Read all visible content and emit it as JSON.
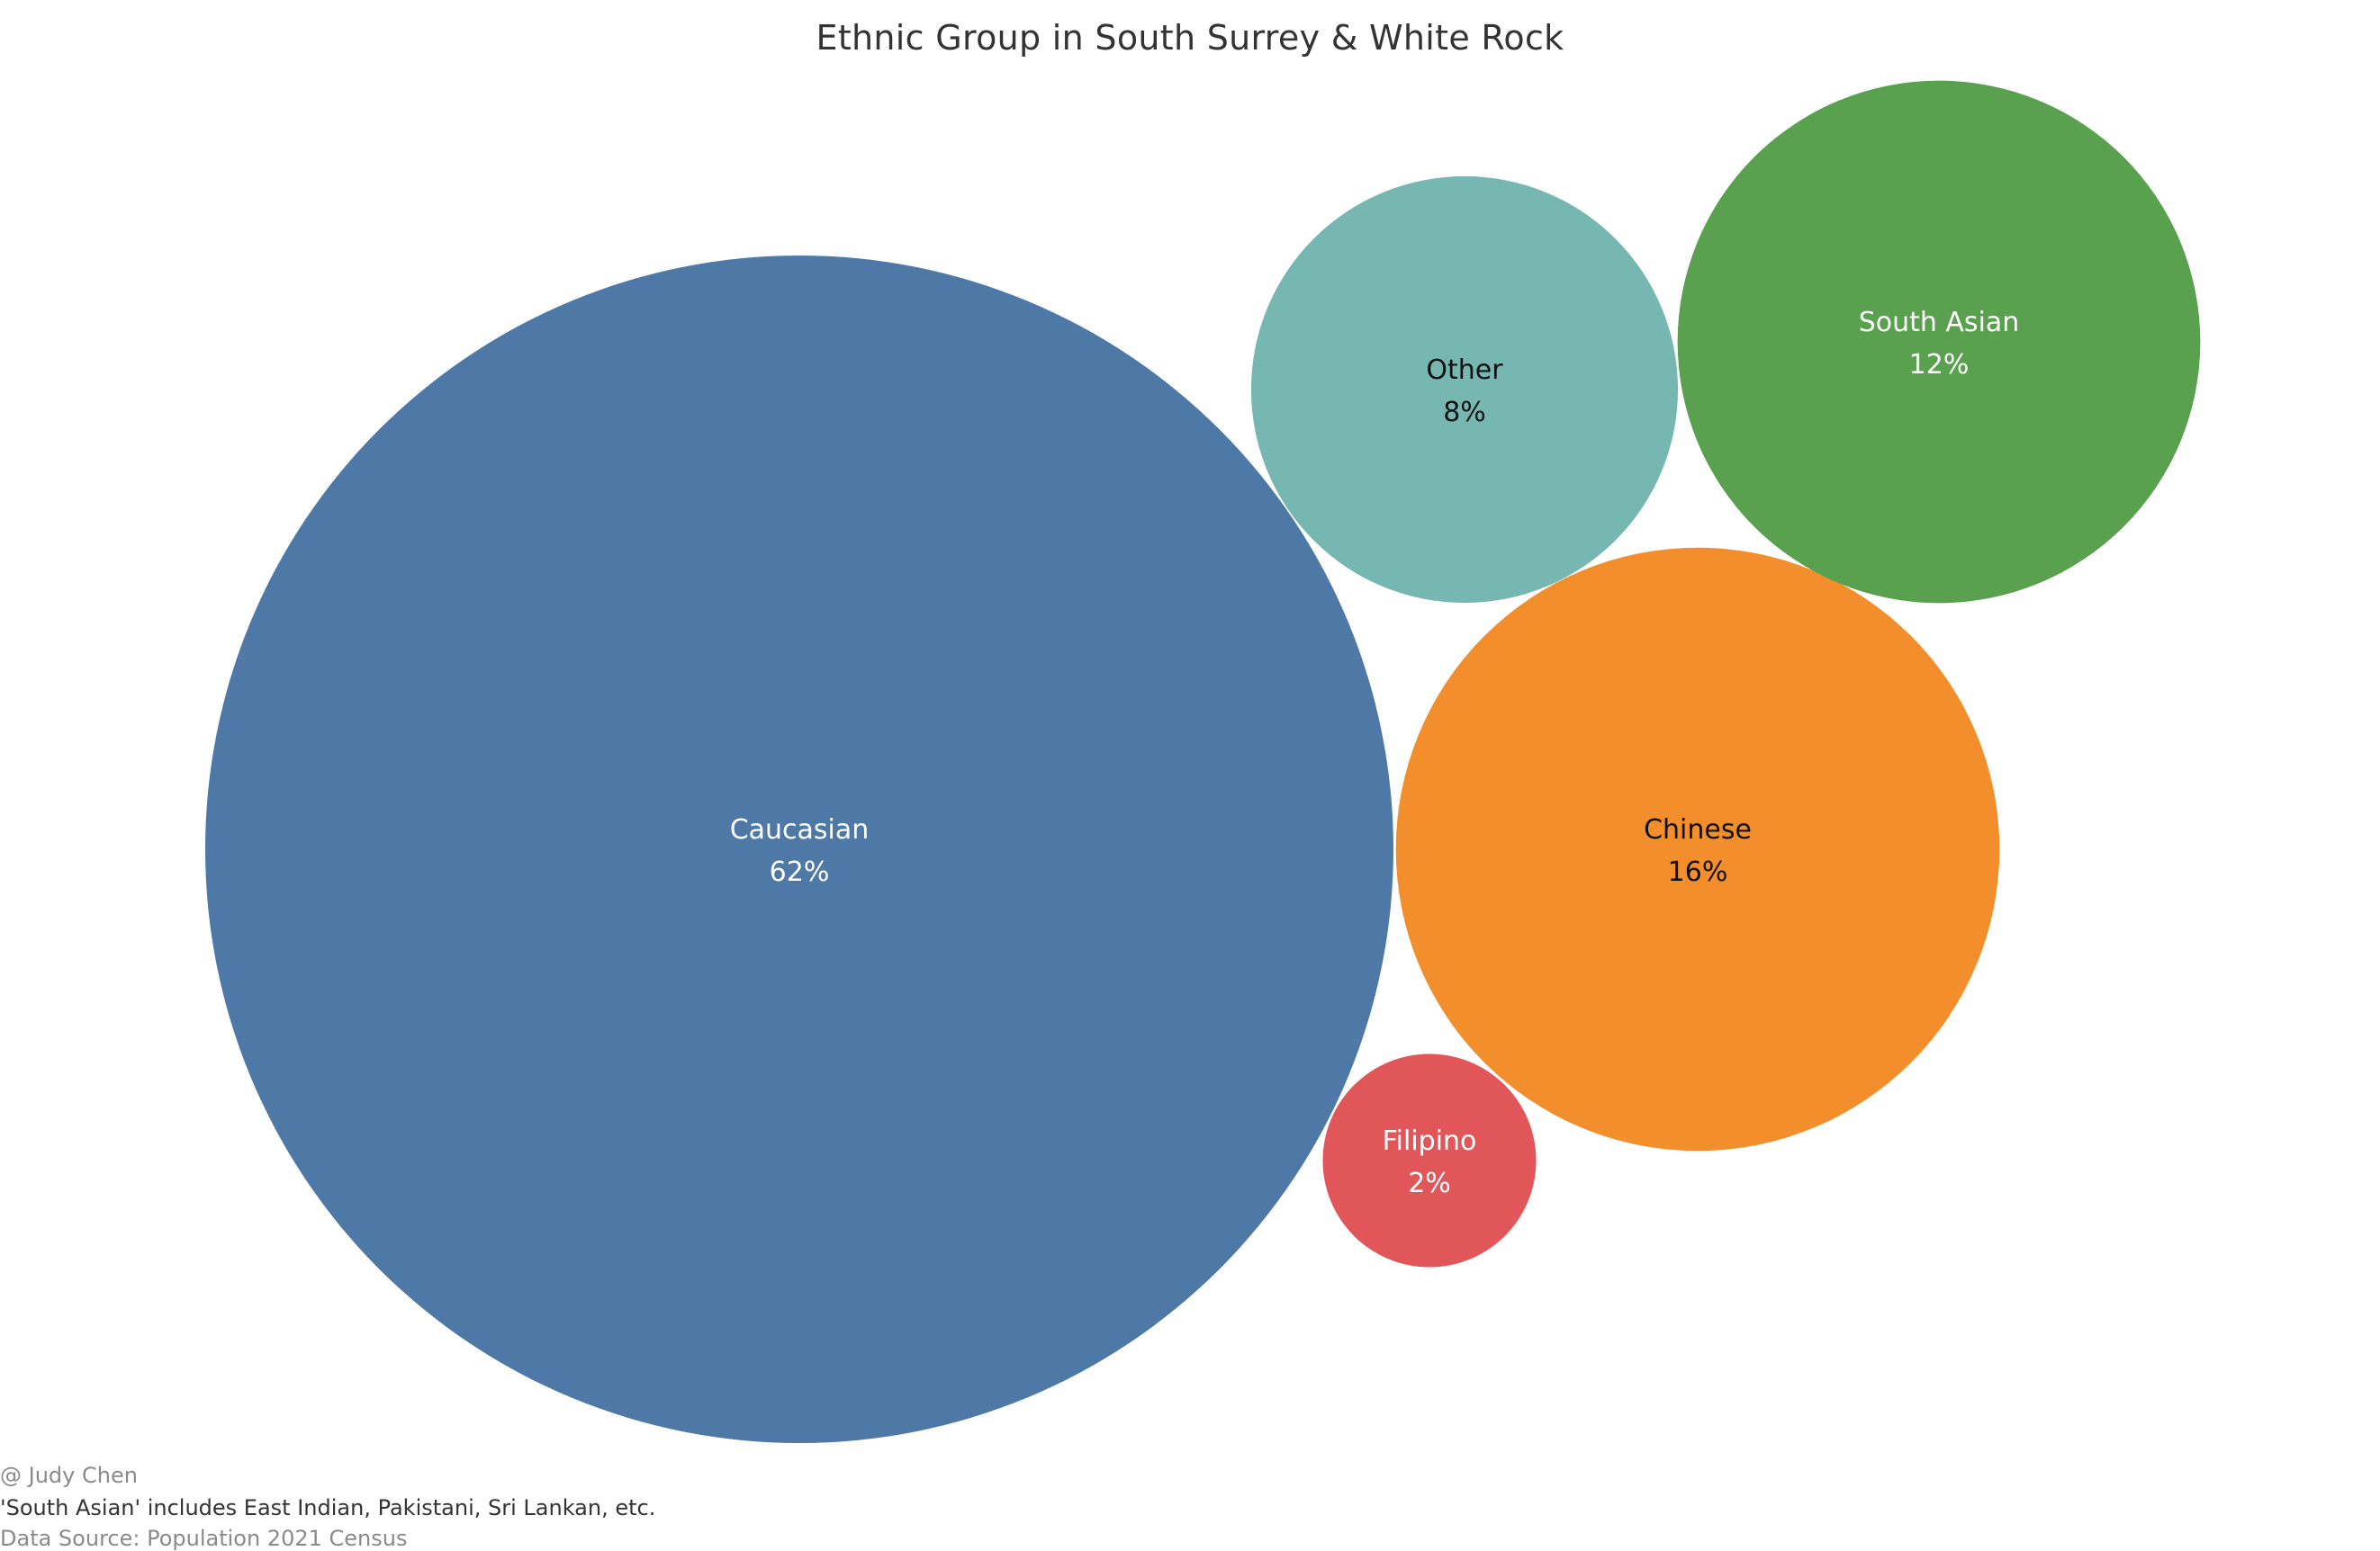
{
  "footer": {
    "author": "@ Judy Chen",
    "note": "'South Asian' includes East Indian, Pakistani, Sri Lankan, etc.",
    "source": "Data Source: Population 2021 Census"
  },
  "chart_data": {
    "type": "bubble",
    "title": "Ethnic Group in South Surrey & White Rock",
    "grid": false,
    "legend": "none",
    "bubbles": [
      {
        "name": "Caucasian",
        "value": 62,
        "label": "62%",
        "color": "#4e79a7",
        "text_color": "#ffffff"
      },
      {
        "name": "Chinese",
        "value": 16,
        "label": "16%",
        "color": "#f28e2b",
        "text_color": "#111111"
      },
      {
        "name": "South Asian",
        "value": 12,
        "label": "12%",
        "color": "#59a14f",
        "text_color": "#ffffff"
      },
      {
        "name": "Other",
        "value": 8,
        "label": "8%",
        "color": "#76b7b2",
        "text_color": "#111111"
      },
      {
        "name": "Filipino",
        "value": 2,
        "label": "2%",
        "color": "#e15759",
        "text_color": "#ffffff"
      }
    ]
  }
}
